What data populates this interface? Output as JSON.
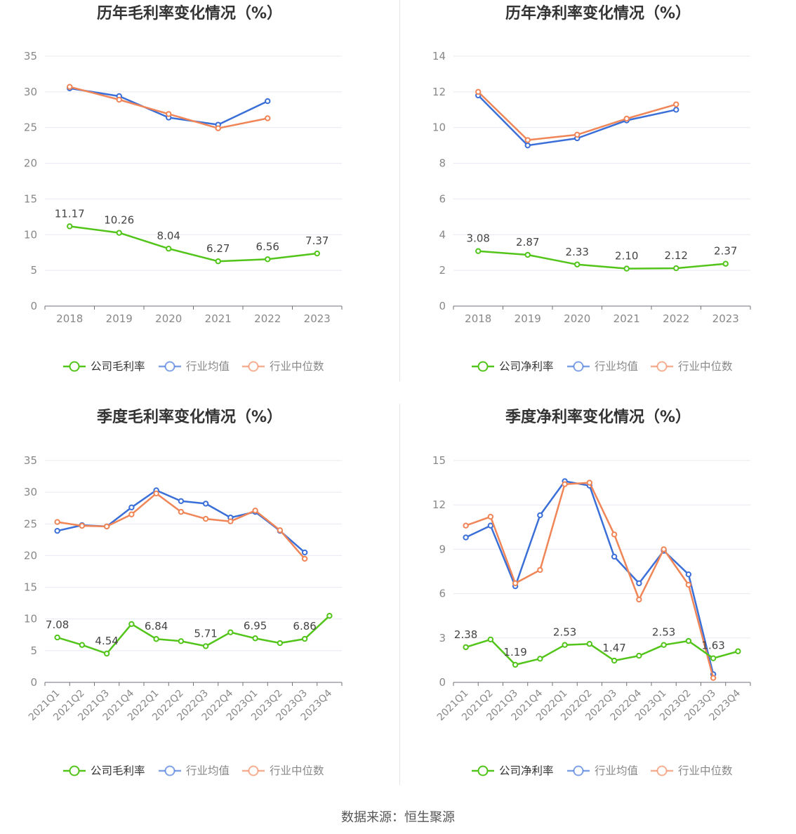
{
  "footer": {
    "source": "数据来源：恒生聚源"
  },
  "chart_data": [
    {
      "type": "line",
      "title": "历年毛利率变化情况（%）",
      "categories": [
        "2018",
        "2019",
        "2020",
        "2021",
        "2022",
        "2023"
      ],
      "ylim": [
        0,
        35
      ],
      "yticks": [
        0,
        5,
        10,
        15,
        20,
        25,
        30,
        35
      ],
      "series": [
        {
          "name": "公司毛利率",
          "color": "#52c41a",
          "values": [
            11.17,
            10.26,
            8.04,
            6.27,
            6.56,
            7.37
          ]
        },
        {
          "name": "行业均值",
          "color": "#3b6fd8",
          "values": [
            30.5,
            29.4,
            26.4,
            25.4,
            28.7,
            null
          ]
        },
        {
          "name": "行业中位数",
          "color": "#f08557",
          "values": [
            30.7,
            28.9,
            26.9,
            24.9,
            26.3,
            null
          ]
        }
      ],
      "data_labels": [
        {
          "index": 0,
          "text": "11.17"
        },
        {
          "index": 1,
          "text": "10.26"
        },
        {
          "index": 2,
          "text": "8.04"
        },
        {
          "index": 3,
          "text": "6.27"
        },
        {
          "index": 4,
          "text": "6.56"
        },
        {
          "index": 5,
          "text": "7.37"
        }
      ],
      "grid": true,
      "legend": "bottom"
    },
    {
      "type": "line",
      "title": "历年净利率变化情况（%）",
      "categories": [
        "2018",
        "2019",
        "2020",
        "2021",
        "2022",
        "2023"
      ],
      "ylim": [
        0,
        14
      ],
      "yticks": [
        0,
        2,
        4,
        6,
        8,
        10,
        12,
        14
      ],
      "series": [
        {
          "name": "公司净利率",
          "color": "#52c41a",
          "values": [
            3.08,
            2.87,
            2.33,
            2.1,
            2.12,
            2.37
          ]
        },
        {
          "name": "行业均值",
          "color": "#3b6fd8",
          "values": [
            11.8,
            9.0,
            9.4,
            10.4,
            11.0,
            null
          ]
        },
        {
          "name": "行业中位数",
          "color": "#f08557",
          "values": [
            12.0,
            9.3,
            9.6,
            10.5,
            11.3,
            null
          ]
        }
      ],
      "data_labels": [
        {
          "index": 0,
          "text": "3.08"
        },
        {
          "index": 1,
          "text": "2.87"
        },
        {
          "index": 2,
          "text": "2.33"
        },
        {
          "index": 3,
          "text": "2.10"
        },
        {
          "index": 4,
          "text": "2.12"
        },
        {
          "index": 5,
          "text": "2.37"
        }
      ],
      "grid": true,
      "legend": "bottom"
    },
    {
      "type": "line",
      "title": "季度毛利率变化情况（%）",
      "categories": [
        "2021Q1",
        "2021Q2",
        "2021Q3",
        "2021Q4",
        "2022Q1",
        "2022Q2",
        "2022Q3",
        "2022Q4",
        "2023Q1",
        "2023Q2",
        "2023Q3",
        "2023Q4"
      ],
      "ylim": [
        0,
        35
      ],
      "yticks": [
        0,
        5,
        10,
        15,
        20,
        25,
        30,
        35
      ],
      "series": [
        {
          "name": "公司毛利率",
          "color": "#52c41a",
          "values": [
            7.08,
            5.9,
            4.54,
            9.2,
            6.84,
            6.5,
            5.71,
            7.9,
            6.95,
            6.2,
            6.86,
            10.5
          ]
        },
        {
          "name": "行业均值",
          "color": "#3b6fd8",
          "values": [
            23.9,
            24.8,
            24.6,
            27.6,
            30.3,
            28.6,
            28.2,
            26.0,
            26.9,
            23.9,
            20.5,
            null
          ]
        },
        {
          "name": "行业中位数",
          "color": "#f08557",
          "values": [
            25.3,
            24.7,
            24.6,
            26.5,
            29.8,
            26.9,
            25.8,
            25.4,
            27.1,
            24.0,
            19.5,
            null
          ]
        }
      ],
      "data_labels": [
        {
          "index": 0,
          "text": "7.08"
        },
        {
          "index": 2,
          "text": "4.54"
        },
        {
          "index": 4,
          "text": "6.84"
        },
        {
          "index": 6,
          "text": "5.71"
        },
        {
          "index": 8,
          "text": "6.95"
        },
        {
          "index": 10,
          "text": "6.86"
        }
      ],
      "grid": true,
      "legend": "bottom"
    },
    {
      "type": "line",
      "title": "季度净利率变化情况（%）",
      "categories": [
        "2021Q1",
        "2021Q2",
        "2021Q3",
        "2021Q4",
        "2022Q1",
        "2022Q2",
        "2022Q3",
        "2022Q4",
        "2023Q1",
        "2023Q2",
        "2023Q3",
        "2023Q4"
      ],
      "ylim": [
        0,
        15
      ],
      "yticks": [
        0,
        3,
        6,
        9,
        12,
        15
      ],
      "series": [
        {
          "name": "公司净利率",
          "color": "#52c41a",
          "values": [
            2.38,
            2.9,
            1.19,
            1.6,
            2.53,
            2.6,
            1.47,
            1.8,
            2.53,
            2.8,
            1.63,
            2.1
          ]
        },
        {
          "name": "行业均值",
          "color": "#3b6fd8",
          "values": [
            9.8,
            10.6,
            6.5,
            11.3,
            13.6,
            13.3,
            8.5,
            6.7,
            8.9,
            7.3,
            0.55,
            null
          ]
        },
        {
          "name": "行业中位数",
          "color": "#f08557",
          "values": [
            10.6,
            11.2,
            6.7,
            7.6,
            13.4,
            13.5,
            10.0,
            5.6,
            9.0,
            6.6,
            0.3,
            null
          ]
        }
      ],
      "data_labels": [
        {
          "index": 0,
          "text": "2.38"
        },
        {
          "index": 2,
          "text": "1.19"
        },
        {
          "index": 4,
          "text": "2.53"
        },
        {
          "index": 6,
          "text": "1.47"
        },
        {
          "index": 8,
          "text": "2.53"
        },
        {
          "index": 10,
          "text": "1.63"
        }
      ],
      "grid": true,
      "legend": "bottom"
    }
  ]
}
